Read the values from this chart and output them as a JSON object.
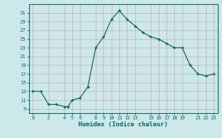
{
  "x": [
    0,
    1,
    2,
    3,
    4,
    4.5,
    5,
    6,
    7,
    8,
    9,
    10,
    11,
    12,
    13,
    14,
    15,
    16,
    17,
    18,
    19,
    20,
    21,
    22,
    23
  ],
  "y": [
    13,
    13,
    10,
    10,
    9.5,
    9.5,
    11,
    11.5,
    14,
    23,
    25.5,
    29.5,
    31.5,
    29.5,
    28,
    26.5,
    25.5,
    25,
    24,
    23,
    23,
    19,
    17,
    16.5,
    17
  ],
  "xticks": [
    0,
    2,
    4,
    5,
    6,
    8,
    9,
    10,
    11,
    12,
    13,
    15,
    16,
    17,
    18,
    19,
    21,
    22,
    23
  ],
  "yticks": [
    9,
    11,
    13,
    15,
    17,
    19,
    21,
    23,
    25,
    27,
    29,
    31
  ],
  "xlabel": "Humidex (Indice chaleur)",
  "ylim": [
    8.0,
    33.0
  ],
  "xlim": [
    -0.5,
    23.5
  ],
  "line_color": "#006666",
  "marker_color": "#006666",
  "bg_color": "#cce8e8",
  "grid_color": "#c8a8a8",
  "axis_color": "#006666",
  "tick_color": "#006666",
  "label_color": "#006666"
}
